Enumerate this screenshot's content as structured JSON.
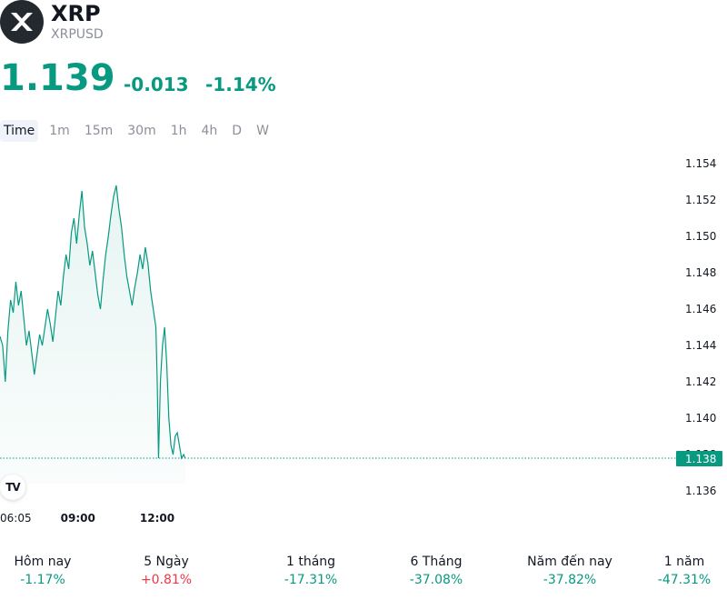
{
  "header": {
    "symbol": "XRP",
    "ticker": "XRPUSD",
    "price": "1.139",
    "change_abs": "-0.013",
    "change_pct": "-1.14%",
    "logo_icon": "xrp-logo-icon"
  },
  "intervals": [
    "Time",
    "1m",
    "15m",
    "30m",
    "1h",
    "4h",
    "D",
    "W"
  ],
  "active_interval": "Time",
  "colors": {
    "accent": "#089981",
    "negative_red": "#f23645",
    "text": "#131722",
    "muted": "#8a8f99"
  },
  "chart_data": {
    "type": "line",
    "y_ticks": [
      "1.154",
      "1.152",
      "1.150",
      "1.148",
      "1.146",
      "1.144",
      "1.142",
      "1.140",
      "1.138",
      "1.136"
    ],
    "ylim": [
      1.1355,
      1.155
    ],
    "x_ticks": [
      {
        "label": "06:05",
        "value": 6.083,
        "bold": false
      },
      {
        "label": "09:00",
        "value": 9.0,
        "bold": true
      },
      {
        "label": "12:00",
        "value": 12.0,
        "bold": true
      }
    ],
    "xlim": [
      6.05,
      31.5
    ],
    "current_price_label": "1.138",
    "current_price": 1.1378,
    "series": [
      {
        "points": [
          [
            6.05,
            1.1445
          ],
          [
            6.15,
            1.144
          ],
          [
            6.25,
            1.142
          ],
          [
            6.35,
            1.1448
          ],
          [
            6.45,
            1.1465
          ],
          [
            6.55,
            1.1458
          ],
          [
            6.65,
            1.1475
          ],
          [
            6.75,
            1.1462
          ],
          [
            6.85,
            1.147
          ],
          [
            6.95,
            1.1455
          ],
          [
            7.05,
            1.144
          ],
          [
            7.15,
            1.1448
          ],
          [
            7.25,
            1.1436
          ],
          [
            7.35,
            1.1424
          ],
          [
            7.45,
            1.1435
          ],
          [
            7.55,
            1.1446
          ],
          [
            7.65,
            1.144
          ],
          [
            7.75,
            1.145
          ],
          [
            7.85,
            1.146
          ],
          [
            7.95,
            1.1452
          ],
          [
            8.05,
            1.1442
          ],
          [
            8.15,
            1.1456
          ],
          [
            8.25,
            1.147
          ],
          [
            8.35,
            1.1462
          ],
          [
            8.45,
            1.1478
          ],
          [
            8.55,
            1.149
          ],
          [
            8.65,
            1.1482
          ],
          [
            8.75,
            1.1502
          ],
          [
            8.85,
            1.151
          ],
          [
            8.95,
            1.1496
          ],
          [
            9.05,
            1.1512
          ],
          [
            9.15,
            1.1525
          ],
          [
            9.25,
            1.1505
          ],
          [
            9.35,
            1.1496
          ],
          [
            9.45,
            1.1484
          ],
          [
            9.55,
            1.1492
          ],
          [
            9.65,
            1.148
          ],
          [
            9.75,
            1.1468
          ],
          [
            9.85,
            1.146
          ],
          [
            9.95,
            1.1476
          ],
          [
            10.05,
            1.149
          ],
          [
            10.15,
            1.15
          ],
          [
            10.25,
            1.1512
          ],
          [
            10.35,
            1.1522
          ],
          [
            10.45,
            1.1528
          ],
          [
            10.55,
            1.1515
          ],
          [
            10.65,
            1.1505
          ],
          [
            10.75,
            1.149
          ],
          [
            10.85,
            1.1478
          ],
          [
            10.95,
            1.147
          ],
          [
            11.05,
            1.1462
          ],
          [
            11.15,
            1.1472
          ],
          [
            11.25,
            1.148
          ],
          [
            11.35,
            1.149
          ],
          [
            11.45,
            1.1482
          ],
          [
            11.55,
            1.1494
          ],
          [
            11.65,
            1.1485
          ],
          [
            11.75,
            1.147
          ],
          [
            11.85,
            1.146
          ],
          [
            11.95,
            1.145
          ],
          [
            12.0,
            1.142
          ],
          [
            12.05,
            1.1378
          ],
          [
            12.12,
            1.142
          ],
          [
            12.2,
            1.144
          ],
          [
            12.28,
            1.145
          ],
          [
            12.36,
            1.143
          ],
          [
            12.44,
            1.14
          ],
          [
            12.52,
            1.1385
          ],
          [
            12.6,
            1.138
          ],
          [
            12.68,
            1.139
          ],
          [
            12.76,
            1.1392
          ],
          [
            12.84,
            1.1385
          ],
          [
            12.92,
            1.1378
          ],
          [
            13.0,
            1.138
          ],
          [
            13.06,
            1.1378
          ]
        ]
      }
    ]
  },
  "periods": [
    {
      "label": "Hôm nay",
      "value": "-1.17%",
      "dir": "neg"
    },
    {
      "label": "5 Ngày",
      "value": "+0.81%",
      "dir": "pos"
    },
    {
      "label": "1 tháng",
      "value": "-17.31%",
      "dir": "neg"
    },
    {
      "label": "6 Tháng",
      "value": "-37.08%",
      "dir": "neg"
    },
    {
      "label": "Năm đến nay",
      "value": "-37.82%",
      "dir": "neg"
    },
    {
      "label": "1 năm",
      "value": "-47.31%",
      "dir": "neg"
    }
  ]
}
